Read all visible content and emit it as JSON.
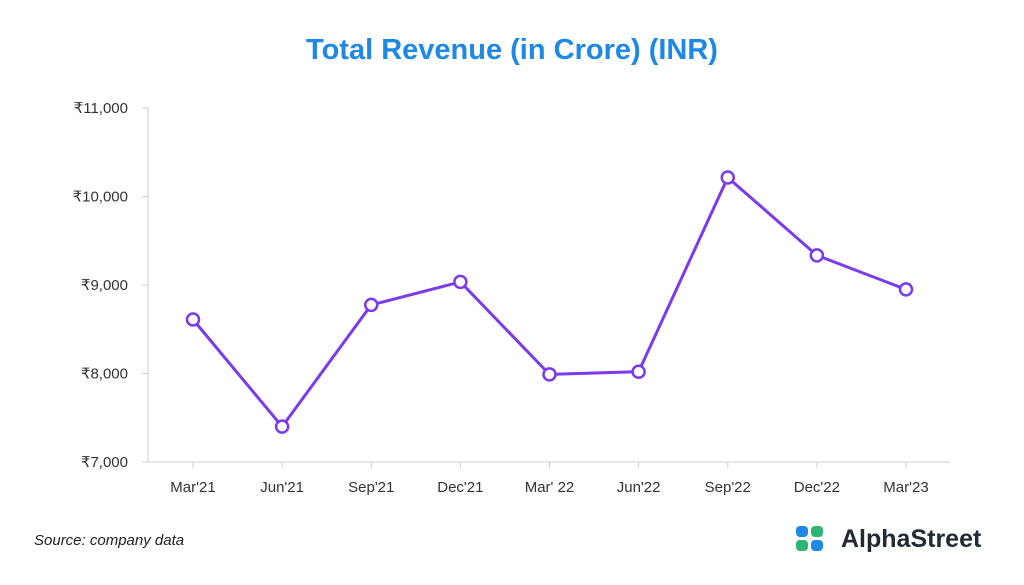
{
  "chart_data": {
    "type": "line",
    "title": "Total Revenue (in Crore) (INR)",
    "categories": [
      "Mar'21",
      "Jun'21",
      "Sep'21",
      "Dec'21",
      "Mar' 22",
      "Jun'22",
      "Sep'22",
      "Dec'22",
      "Mar'23"
    ],
    "series": [
      {
        "name": "Total Revenue",
        "values": [
          8610,
          7400,
          8775,
          9035,
          7990,
          8020,
          10215,
          9335,
          8950
        ]
      }
    ],
    "yticks": [
      "₹7,000",
      "₹8,000",
      "₹9,000",
      "₹10,000",
      "₹11,000"
    ],
    "ytick_values": [
      7000,
      8000,
      9000,
      10000,
      11000
    ],
    "ylim": [
      7000,
      11000
    ],
    "xlabel": "",
    "ylabel": "",
    "line_color": "#7c3aed"
  },
  "footer": {
    "source": "Source: company data",
    "brand": "AlphaStreet"
  },
  "colors": {
    "title": "#1e88e5",
    "logo_blue": "#1e88e5",
    "logo_green": "#2bb673"
  }
}
